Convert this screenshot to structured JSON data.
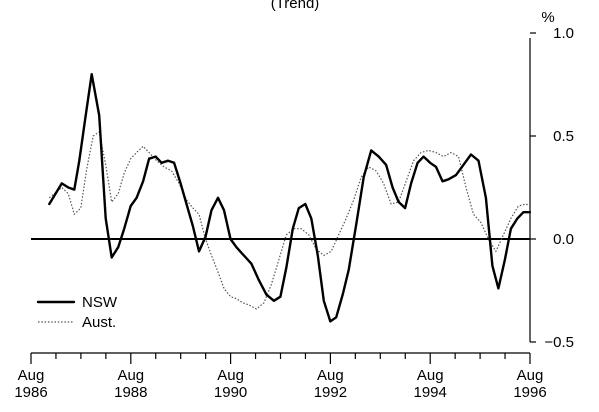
{
  "chart_data": {
    "type": "line",
    "title": "(Trend)",
    "ylabel": "%",
    "xlim": [
      1986.583,
      1996.583
    ],
    "ylim": [
      -0.5,
      1.0
    ],
    "yticks": [
      1.0,
      0.5,
      0.0,
      -0.5
    ],
    "ytick_labels": [
      "1.0",
      "0.5",
      "0.0",
      "−0.5"
    ],
    "xticks": [
      1986.583,
      1988.583,
      1990.583,
      1992.583,
      1994.583,
      1996.583
    ],
    "xtick_labels": [
      [
        "Aug",
        "1986"
      ],
      [
        "Aug",
        "1988"
      ],
      [
        "Aug",
        "1990"
      ],
      [
        "Aug",
        "1992"
      ],
      [
        "Aug",
        "1994"
      ],
      [
        "Aug",
        "1996"
      ]
    ],
    "zero_line": 0.0,
    "grid": false,
    "legend": "bottom-left",
    "series": [
      {
        "name": "NSW",
        "color": "#000000",
        "x": [
          1986.95,
          1987.05,
          1987.2,
          1987.33,
          1987.45,
          1987.55,
          1987.68,
          1987.8,
          1987.95,
          1988.08,
          1988.2,
          1988.33,
          1988.45,
          1988.58,
          1988.7,
          1988.83,
          1988.95,
          1989.08,
          1989.2,
          1989.33,
          1989.45,
          1989.58,
          1989.7,
          1989.83,
          1989.95,
          1990.08,
          1990.2,
          1990.33,
          1990.45,
          1990.58,
          1990.7,
          1990.85,
          1991.0,
          1991.15,
          1991.3,
          1991.45,
          1991.58,
          1991.7,
          1991.83,
          1991.95,
          1992.08,
          1992.2,
          1992.33,
          1992.45,
          1992.58,
          1992.7,
          1992.83,
          1992.95,
          1993.1,
          1993.25,
          1993.4,
          1993.55,
          1993.7,
          1993.83,
          1993.95,
          1994.08,
          1994.2,
          1994.33,
          1994.45,
          1994.58,
          1994.7,
          1994.83,
          1994.95,
          1995.1,
          1995.25,
          1995.4,
          1995.55,
          1995.7,
          1995.83,
          1995.95,
          1996.08,
          1996.2,
          1996.33,
          1996.45,
          1996.58
        ],
        "values": [
          0.17,
          0.21,
          0.27,
          0.25,
          0.24,
          0.38,
          0.6,
          0.8,
          0.6,
          0.1,
          -0.09,
          -0.04,
          0.05,
          0.16,
          0.2,
          0.28,
          0.39,
          0.4,
          0.37,
          0.38,
          0.37,
          0.27,
          0.17,
          0.06,
          -0.06,
          0.01,
          0.14,
          0.2,
          0.14,
          0.0,
          -0.04,
          -0.08,
          -0.12,
          -0.2,
          -0.27,
          -0.3,
          -0.28,
          -0.14,
          0.05,
          0.15,
          0.17,
          0.1,
          -0.08,
          -0.3,
          -0.4,
          -0.38,
          -0.27,
          -0.15,
          0.07,
          0.3,
          0.43,
          0.4,
          0.36,
          0.25,
          0.18,
          0.15,
          0.27,
          0.37,
          0.4,
          0.37,
          0.35,
          0.28,
          0.29,
          0.31,
          0.36,
          0.41,
          0.38,
          0.2,
          -0.13,
          -0.24,
          -0.1,
          0.05,
          0.1,
          0.13,
          0.13
        ]
      },
      {
        "name": "Aust.",
        "color": "#555555",
        "x": [
          1986.95,
          1987.05,
          1987.2,
          1987.33,
          1987.45,
          1987.58,
          1987.7,
          1987.83,
          1987.95,
          1988.08,
          1988.2,
          1988.33,
          1988.45,
          1988.58,
          1988.7,
          1988.83,
          1988.95,
          1989.1,
          1989.25,
          1989.4,
          1989.55,
          1989.7,
          1989.83,
          1989.95,
          1990.08,
          1990.2,
          1990.33,
          1990.45,
          1990.58,
          1990.7,
          1990.83,
          1990.95,
          1991.1,
          1991.25,
          1991.4,
          1991.55,
          1991.7,
          1991.85,
          1992.0,
          1992.15,
          1992.3,
          1992.45,
          1992.6,
          1992.75,
          1992.9,
          1993.05,
          1993.2,
          1993.35,
          1993.5,
          1993.65,
          1993.8,
          1993.95,
          1994.1,
          1994.25,
          1994.4,
          1994.55,
          1994.7,
          1994.85,
          1995.0,
          1995.15,
          1995.3,
          1995.45,
          1995.6,
          1995.75,
          1995.9,
          1996.05,
          1996.2,
          1996.35,
          1996.5,
          1996.58
        ],
        "values": [
          0.2,
          0.22,
          0.25,
          0.22,
          0.12,
          0.15,
          0.34,
          0.5,
          0.52,
          0.36,
          0.18,
          0.22,
          0.32,
          0.39,
          0.42,
          0.45,
          0.42,
          0.38,
          0.35,
          0.33,
          0.27,
          0.19,
          0.15,
          0.12,
          0.0,
          -0.08,
          -0.16,
          -0.24,
          -0.28,
          -0.29,
          -0.31,
          -0.32,
          -0.34,
          -0.31,
          -0.22,
          -0.1,
          0.02,
          0.05,
          0.05,
          0.02,
          -0.05,
          -0.08,
          -0.06,
          0.02,
          0.1,
          0.19,
          0.3,
          0.35,
          0.33,
          0.27,
          0.17,
          0.18,
          0.28,
          0.38,
          0.42,
          0.43,
          0.42,
          0.4,
          0.42,
          0.4,
          0.25,
          0.12,
          0.08,
          0.0,
          -0.06,
          0.02,
          0.1,
          0.16,
          0.17,
          0.16
        ]
      }
    ]
  }
}
